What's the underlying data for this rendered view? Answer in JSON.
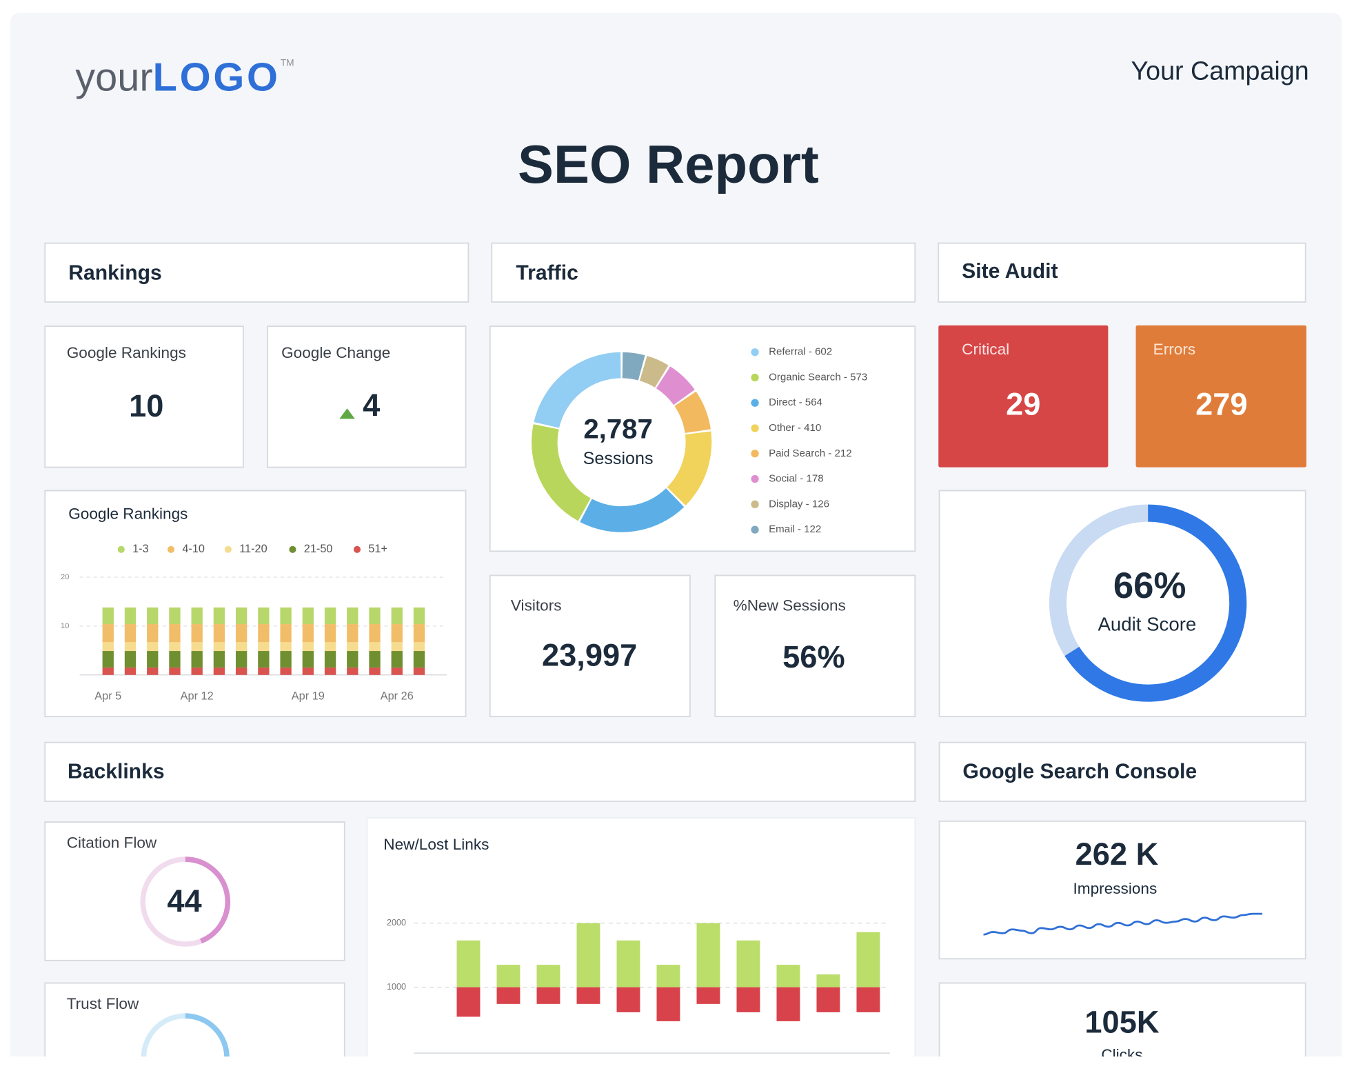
{
  "header": {
    "logo": {
      "light": "your",
      "bold": "LOGO",
      "mark": "TM"
    },
    "campaign": "Your Campaign",
    "title": "SEO Report"
  },
  "rankings": {
    "heading": "Rankings",
    "google_rankings": {
      "label": "Google Rankings",
      "value": 10
    },
    "google_change": {
      "label": "Google Change",
      "value": 4
    },
    "chart_data": {
      "type": "bar",
      "stacked": true,
      "title": "Google Rankings",
      "categories": [
        "Apr 5",
        null,
        null,
        null,
        "Apr 12",
        null,
        null,
        null,
        null,
        "Apr 19",
        null,
        null,
        null,
        "Apr 26",
        null
      ],
      "series": [
        {
          "name": "1-3",
          "color": "#b7d76a",
          "values": [
            3.4,
            3.4,
            3.4,
            3.4,
            3.4,
            3.4,
            3.4,
            3.4,
            3.4,
            3.4,
            3.4,
            3.4,
            3.4,
            3.4,
            3.4
          ]
        },
        {
          "name": "4-10",
          "color": "#f2bd68",
          "values": [
            3.7,
            3.7,
            3.7,
            3.7,
            3.7,
            3.7,
            3.7,
            3.7,
            3.7,
            3.7,
            3.7,
            3.7,
            3.7,
            3.7,
            3.7
          ]
        },
        {
          "name": "11-20",
          "color": "#f5dc8e",
          "values": [
            1.8,
            1.8,
            1.8,
            1.8,
            1.8,
            1.8,
            1.8,
            1.8,
            1.8,
            1.8,
            1.8,
            1.8,
            1.8,
            1.8,
            1.8
          ]
        },
        {
          "name": "21-50",
          "color": "#6f8f30",
          "values": [
            3.4,
            3.4,
            3.4,
            3.4,
            3.4,
            3.4,
            3.4,
            3.4,
            3.4,
            3.4,
            3.4,
            3.4,
            3.4,
            3.4,
            3.4
          ]
        },
        {
          "name": "51+",
          "color": "#d9534f",
          "values": [
            1.5,
            1.5,
            1.5,
            1.5,
            1.5,
            1.5,
            1.5,
            1.5,
            1.5,
            1.5,
            1.5,
            1.5,
            1.5,
            1.5,
            1.5
          ]
        }
      ],
      "ylim": [
        0,
        20
      ],
      "yticks": [
        10,
        20
      ],
      "grid": true,
      "legend": "top"
    }
  },
  "traffic": {
    "heading": "Traffic",
    "chart_data": {
      "type": "donut",
      "categories": [
        "Referral",
        "Organic Search",
        "Direct",
        "Other",
        "Paid Search",
        "Social",
        "Display",
        "Email"
      ],
      "values": [
        602,
        573,
        564,
        410,
        212,
        178,
        126,
        122
      ],
      "legend_labels": [
        "Referral - 602",
        "Organic Search - 573",
        "Direct - 564",
        "Other - 410",
        "Paid Search - 212",
        "Social - 178",
        "Display - 126",
        "Email - 122"
      ],
      "colors": [
        "#92cdf3",
        "#b9d65c",
        "#5cafe6",
        "#f1d25a",
        "#f2b95f",
        "#df8fd0",
        "#cbbb8b",
        "#80a9bf"
      ],
      "total": {
        "value": 2787,
        "label": "2,787"
      },
      "total_label": "Sessions",
      "legend": "right"
    },
    "visitors": {
      "label": "Visitors",
      "value": {
        "value": 23997,
        "label": "23,997"
      }
    },
    "new_sessions": {
      "label": "%New Sessions",
      "value": {
        "value": 56,
        "label": "56%"
      }
    }
  },
  "site_audit": {
    "heading": "Site Audit",
    "critical": {
      "label": "Critical",
      "value": 29,
      "color": "#d64646"
    },
    "errors": {
      "label": "Errors",
      "value": 279,
      "color": "#e07c3a"
    },
    "audit_score": {
      "label": "Audit Score",
      "value": {
        "value": 66,
        "label": "66%"
      },
      "color": "#2f78e6",
      "track_color": "#c9dbf3"
    }
  },
  "backlinks": {
    "heading": "Backlinks",
    "citation_flow": {
      "label": "Citation Flow",
      "value": 44,
      "color": "#d990cf",
      "track_color": "#f1dcee"
    },
    "trust_flow": {
      "label": "Trust Flow"
    },
    "chart_data": {
      "type": "floating-bar",
      "title": "New/Lost Links",
      "baseline": 1000,
      "series": [
        {
          "color": "#bbdd6a",
          "values": [
            1730,
            1350,
            1350,
            2000,
            1730,
            1350,
            2000,
            1730,
            1350,
            1200,
            1860
          ]
        },
        {
          "color": "#d8434b",
          "values": [
            540,
            740,
            740,
            740,
            610,
            470,
            740,
            610,
            470,
            610,
            610
          ]
        }
      ],
      "ylim": [
        0,
        2200
      ],
      "yticks": [
        1000,
        2000
      ],
      "grid": true
    }
  },
  "search_console": {
    "heading": "Google Search Console",
    "impressions": {
      "label": "Impressions",
      "value": {
        "value": 262000,
        "label": "262 K"
      },
      "sparkline": {
        "color": "#2f6fd6",
        "values": [
          2,
          4,
          3,
          6,
          5,
          3,
          7,
          6,
          8,
          6,
          9,
          7,
          10,
          8,
          11,
          9,
          12,
          10,
          13,
          11,
          12,
          14,
          12,
          15,
          13,
          16,
          15,
          17,
          18,
          18
        ]
      }
    },
    "clicks": {
      "label": "Clicks",
      "value": {
        "value": 105000,
        "label": "105K"
      }
    }
  }
}
